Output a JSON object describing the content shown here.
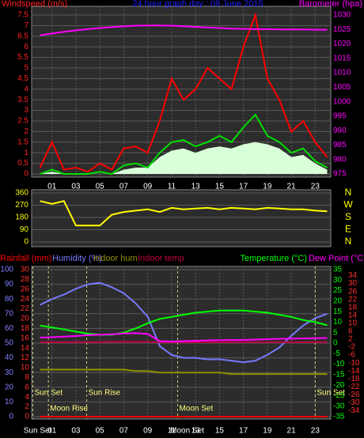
{
  "chart_data": [
    {
      "type": "line",
      "title": "24 hour graph day : 09 June 2015",
      "ylabel": "Windspeed (m/s)",
      "y2label": "Barometer (hpa)",
      "x": [
        0,
        1,
        2,
        3,
        4,
        5,
        6,
        7,
        8,
        9,
        10,
        11,
        12,
        13,
        14,
        15,
        16,
        17,
        18,
        19,
        20,
        21,
        22,
        23,
        24
      ],
      "xlim": [
        -0.7,
        24.3
      ],
      "xticks": [
        {
          "value": 1,
          "label": "01"
        },
        {
          "value": 3,
          "label": "03"
        },
        {
          "value": 5,
          "label": "05"
        },
        {
          "value": 7,
          "label": "07"
        },
        {
          "value": 9,
          "label": "09"
        },
        {
          "value": 11,
          "label": "11"
        },
        {
          "value": 13,
          "label": "13"
        },
        {
          "value": 15,
          "label": "15"
        },
        {
          "value": 17,
          "label": "17"
        },
        {
          "value": 19,
          "label": "19"
        },
        {
          "value": 21,
          "label": "21"
        },
        {
          "value": 23,
          "label": "23"
        }
      ],
      "ylim": [
        0,
        7.5
      ],
      "yticks": [
        0,
        0.5,
        1,
        1.5,
        2,
        2.5,
        3,
        3.5,
        4,
        4.5,
        5,
        5.5,
        6,
        6.5,
        7,
        7.5
      ],
      "ycolor": "#ff2020",
      "y2lim": [
        975,
        1030
      ],
      "y2ticks": [
        975,
        980,
        985,
        990,
        995,
        1000,
        1005,
        1010,
        1015,
        1020,
        1025,
        1030
      ],
      "y2color": "#ff00ff",
      "grid": true,
      "series": [
        {
          "color": "#d8ffd8",
          "fill": true,
          "values": [
            0,
            0.1,
            0,
            0,
            0,
            0,
            0,
            0.2,
            0.3,
            0.3,
            0.8,
            1.1,
            1.2,
            1.0,
            1.2,
            1.3,
            1.2,
            1.4,
            1.5,
            1.4,
            1.2,
            0.8,
            0.9,
            0.5,
            0.2
          ]
        },
        {
          "color": "#ff0000",
          "values": [
            0.3,
            1.5,
            0.2,
            0.3,
            0.1,
            0.5,
            0.2,
            1.2,
            1.3,
            1.0,
            2.5,
            4.5,
            3.5,
            4.0,
            5.0,
            4.5,
            4.0,
            6.0,
            7.5,
            4.5,
            3.5,
            2.0,
            2.5,
            1.5,
            0.8
          ]
        },
        {
          "color": "#00e000",
          "values": [
            0,
            0.2,
            0,
            0,
            0,
            0.1,
            0,
            0.4,
            0.5,
            0.3,
            1.0,
            1.5,
            1.6,
            1.3,
            1.5,
            1.8,
            1.5,
            2.2,
            2.8,
            1.8,
            1.5,
            1.0,
            1.2,
            0.6,
            0.3
          ]
        },
        {
          "color": "#ff00ff",
          "axis": "y2",
          "values": [
            1023,
            1023.6,
            1024.2,
            1024.7,
            1025.1,
            1025.5,
            1025.8,
            1026.1,
            1026.3,
            1026.4,
            1026.4,
            1026.3,
            1026.1,
            1025.9,
            1025.7,
            1025.5,
            1025.3,
            1025.2,
            1025.1,
            1025.1,
            1025,
            1025,
            1025,
            1024.9,
            1024.9
          ]
        }
      ]
    },
    {
      "type": "line",
      "x": [
        0,
        1,
        2,
        3,
        4,
        5,
        6,
        7,
        8,
        9,
        10,
        11,
        12,
        13,
        14,
        15,
        16,
        17,
        18,
        19,
        20,
        21,
        22,
        23,
        24
      ],
      "xlim": [
        -0.7,
        24.3
      ],
      "ylim": [
        0,
        360
      ],
      "yticks": [
        0,
        90,
        180,
        270,
        360
      ],
      "ycolor": "#ffff00",
      "y2lim": [
        0,
        360
      ],
      "y2ticks": [
        {
          "value": 360,
          "label": "N"
        },
        {
          "value": 270,
          "label": "W"
        },
        {
          "value": 180,
          "label": "S"
        },
        {
          "value": 90,
          "label": "E"
        },
        {
          "value": 0,
          "label": "N"
        }
      ],
      "y2color": "#ffff00",
      "grid": true,
      "series": [
        {
          "color": "#ffff00",
          "values": [
            300,
            280,
            300,
            120,
            120,
            120,
            200,
            220,
            230,
            240,
            220,
            250,
            240,
            245,
            250,
            240,
            250,
            245,
            240,
            250,
            245,
            240,
            240,
            230,
            225
          ]
        }
      ]
    },
    {
      "type": "line",
      "x": [
        0,
        1,
        2,
        3,
        4,
        5,
        6,
        7,
        8,
        9,
        10,
        11,
        12,
        13,
        14,
        15,
        16,
        17,
        18,
        19,
        20,
        21,
        22,
        23,
        24
      ],
      "xlim": [
        -0.7,
        24.3
      ],
      "xticks": [
        {
          "value": 1,
          "label": "01"
        },
        {
          "value": 3,
          "label": "03"
        },
        {
          "value": 5,
          "label": "05"
        },
        {
          "value": 7,
          "label": "07"
        },
        {
          "value": 9,
          "label": "09"
        },
        {
          "value": 11,
          "label": "11"
        },
        {
          "value": 13,
          "label": "13"
        },
        {
          "value": 15,
          "label": "15"
        },
        {
          "value": 17,
          "label": "17"
        },
        {
          "value": 19,
          "label": "19"
        },
        {
          "value": 21,
          "label": "21"
        },
        {
          "value": 23,
          "label": "23"
        }
      ],
      "ylim": [
        0,
        100
      ],
      "yticks": [
        0,
        10,
        20,
        30,
        40,
        50,
        60,
        70,
        80,
        90,
        100
      ],
      "ycolor": "#8080ff",
      "y4lim": [
        0,
        30
      ],
      "y4ticks": [
        0,
        2,
        4,
        6,
        8,
        10,
        12,
        14,
        16,
        18,
        20,
        22,
        24,
        26,
        28,
        30
      ],
      "y4color": "#ff3030",
      "y2lim": [
        -35,
        35
      ],
      "y2ticks": [
        -35,
        -30,
        -25,
        -20,
        -15,
        -10,
        -5,
        0,
        5,
        10,
        15,
        20,
        25,
        30,
        35
      ],
      "y2color": "#00ff00",
      "y3lim": [
        -37,
        37
      ],
      "y3ticks": [
        -34,
        -30,
        -26,
        -22,
        -18,
        -14,
        -10,
        -6,
        -2,
        2,
        6,
        10,
        14,
        18,
        22,
        26,
        30,
        34
      ],
      "y3color": "#ff3030",
      "grid": true,
      "sun_events": [
        {
          "label": "Sun Set",
          "x": -0.6
        },
        {
          "label": "Sun Rise",
          "x": 3.9
        },
        {
          "label": "Sun Set",
          "x": 23.0
        }
      ],
      "moon_events": [
        {
          "label": "Moon Rise",
          "x": 0.7
        },
        {
          "label": "Moon Set",
          "x": 11.5
        }
      ],
      "axis_markers": [
        {
          "label": "Sun Set",
          "x": -0.2
        },
        {
          "label": "Moon Set",
          "x": 12.3
        }
      ],
      "series": [
        {
          "name": "Rainfall (mm)",
          "color": "#ff0000",
          "axis": "y4",
          "values": [
            0,
            0,
            0,
            0,
            0,
            0,
            0,
            0,
            0,
            0,
            0,
            0,
            0,
            0,
            0,
            0,
            0,
            0,
            0,
            0,
            0,
            0,
            0,
            0,
            0
          ]
        },
        {
          "name": "Humidity (%)",
          "color": "#7878ff",
          "values": [
            76,
            80,
            83,
            87,
            90,
            91,
            88,
            84,
            77,
            68,
            48,
            42,
            40,
            40,
            39,
            39,
            38,
            37,
            38,
            42,
            47,
            55,
            62,
            67,
            70
          ]
        },
        {
          "name": "Indoor hum",
          "color": "#909000",
          "values": [
            32,
            32,
            32,
            32,
            32,
            32,
            32,
            32,
            31,
            31,
            30,
            30,
            30,
            30,
            30,
            30,
            29,
            29,
            29,
            29,
            29,
            29,
            29,
            29,
            29
          ]
        },
        {
          "name": "Indoor temp",
          "color": "#c00040",
          "axis": "y2",
          "values": [
            0.5,
            0.5,
            0.5,
            0.5,
            0.5,
            0.5,
            0.6,
            0.6,
            0.6,
            0.6,
            0.5,
            0.4,
            0.4,
            0.4,
            0.4,
            0.5,
            0.5,
            0.5,
            0.5,
            0.5,
            0.5,
            0.5,
            0.5,
            0.5,
            0.5
          ]
        },
        {
          "name": "Temperature (°C)",
          "color": "#00ff00",
          "axis": "y2",
          "values": [
            8.3,
            7.5,
            6.5,
            5.5,
            4.5,
            4,
            4,
            5,
            7,
            9.5,
            11.5,
            12.5,
            13.5,
            14.5,
            15,
            15.5,
            15.5,
            15.5,
            15,
            14.5,
            13.5,
            12.5,
            11,
            10,
            8.5
          ]
        },
        {
          "name": "Dew Point (°C)",
          "color": "#ff00ff",
          "axis": "y3",
          "values": [
            2.8,
            3,
            3.3,
            3.6,
            4,
            4.2,
            4.5,
            4.8,
            5,
            4.6,
            1,
            0.8,
            1,
            1.2,
            1.4,
            1.5,
            1.6,
            1.6,
            1.8,
            2,
            2.2,
            2.3,
            2.4,
            2.5,
            2.6
          ]
        }
      ]
    }
  ]
}
